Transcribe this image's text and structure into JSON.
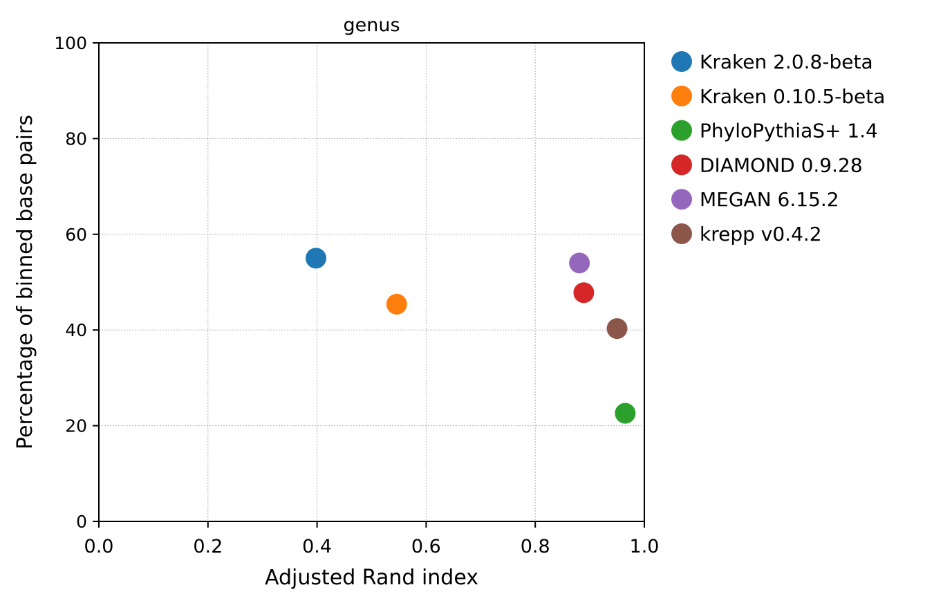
{
  "chart_data": {
    "type": "scatter",
    "title": "genus",
    "xlabel": "Adjusted Rand index",
    "ylabel": "Percentage of binned base pairs",
    "xlim": [
      0.0,
      1.0
    ],
    "ylim": [
      0,
      100
    ],
    "xticks": [
      0.0,
      0.2,
      0.4,
      0.6,
      0.8,
      1.0
    ],
    "xtick_labels": [
      "0.0",
      "0.2",
      "0.4",
      "0.6",
      "0.8",
      "1.0"
    ],
    "yticks": [
      0,
      20,
      40,
      60,
      80,
      100
    ],
    "ytick_labels": [
      "0",
      "20",
      "40",
      "60",
      "80",
      "100"
    ],
    "grid": true,
    "legend_position": "outside-right",
    "series": [
      {
        "name": "Kraken 2.0.8-beta",
        "color": "#1f77b4",
        "x": 0.398,
        "y": 55.0
      },
      {
        "name": "Kraken 0.10.5-beta",
        "color": "#ff7f0e",
        "x": 0.546,
        "y": 45.4
      },
      {
        "name": "PhyloPythiaS+ 1.4",
        "color": "#2ca02c",
        "x": 0.965,
        "y": 22.6
      },
      {
        "name": "DIAMOND 0.9.28",
        "color": "#d62728",
        "x": 0.889,
        "y": 47.8
      },
      {
        "name": "MEGAN 6.15.2",
        "color": "#9467bd",
        "x": 0.881,
        "y": 54.0
      },
      {
        "name": "krepp v0.4.2",
        "color": "#8c564b",
        "x": 0.95,
        "y": 40.3
      }
    ]
  }
}
